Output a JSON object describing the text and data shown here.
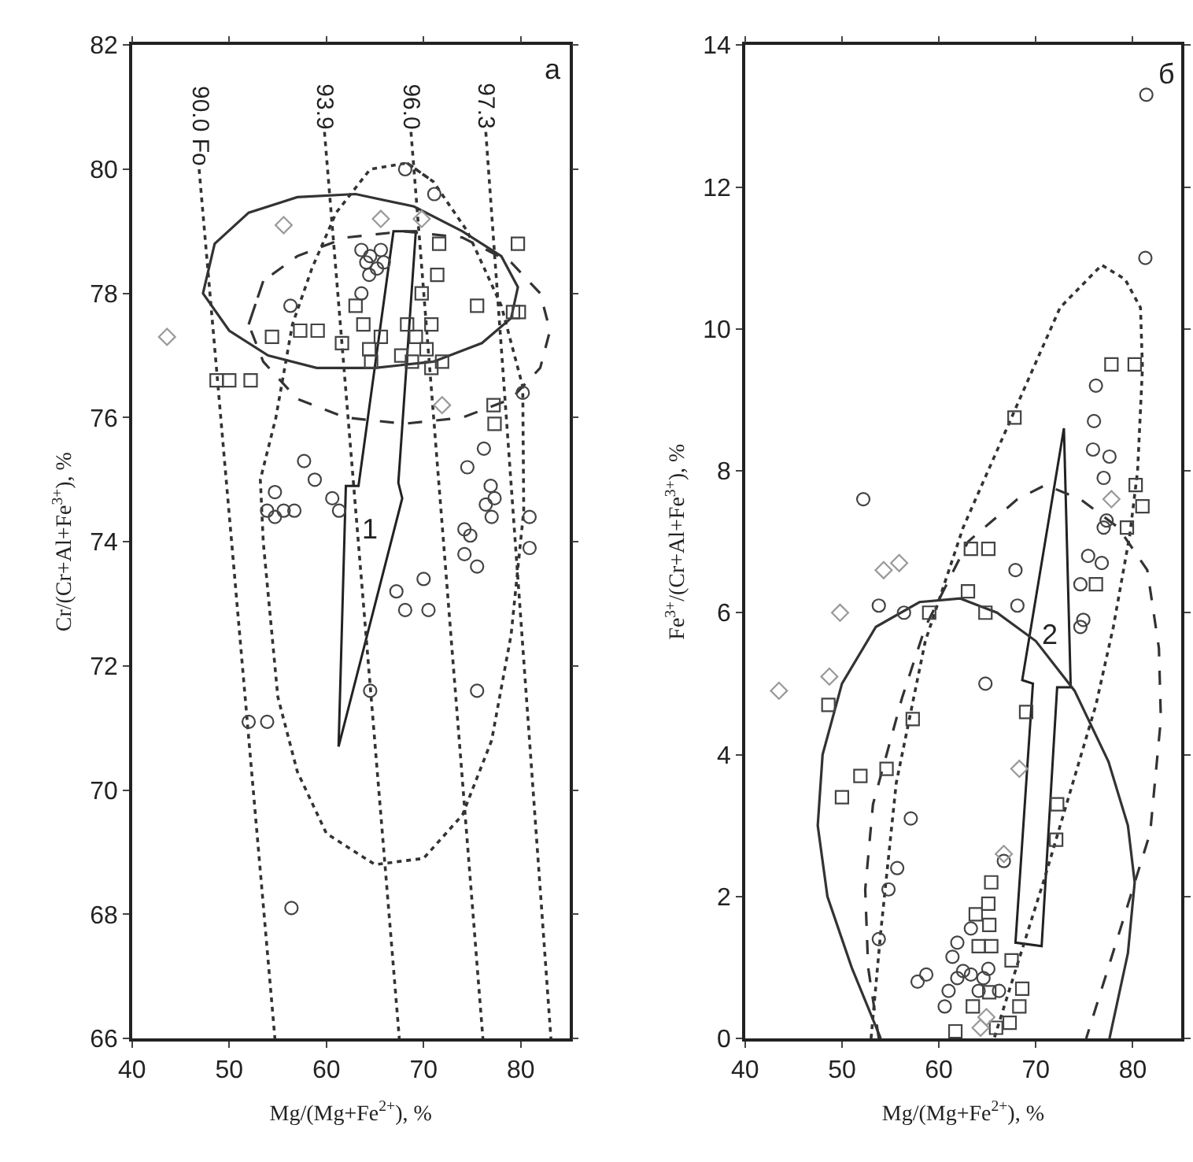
{
  "chart_data": [
    {
      "type": "scatter",
      "xlabel": "Mg/(Mg+Fe$^{2+}$), %",
      "ylabel": "Cr/(Cr+Al+Fe$^{3+}$), %",
      "xlim": [
        40,
        85
      ],
      "ylim": [
        66,
        82
      ],
      "xticks": [
        40,
        50,
        60,
        70,
        80
      ],
      "yticks": [
        66,
        68,
        70,
        72,
        74,
        76,
        78,
        80,
        82
      ],
      "grid": false,
      "series": [
        {
          "type": "line",
          "color": "#333333",
          "line_style": "dotted",
          "marker": "none",
          "x": [
            46.9,
            54.7
          ],
          "values": [
            80.0,
            66
          ]
        },
        {
          "type": "line",
          "color": "#333333",
          "line_style": "dotted",
          "marker": "none",
          "x": [
            59.8,
            67.5
          ],
          "values": [
            80.6,
            66
          ]
        },
        {
          "type": "line",
          "color": "#333333",
          "line_style": "dotted",
          "marker": "none",
          "x": [
            68.7,
            76.1
          ],
          "values": [
            80.6,
            66
          ]
        },
        {
          "type": "line",
          "color": "#333333",
          "line_style": "dotted",
          "marker": "none",
          "x": [
            76.4,
            83.1
          ],
          "values": [
            80.6,
            66
          ]
        },
        {
          "type": "line",
          "color": "#333333",
          "line_style": "solid",
          "marker": "none",
          "x": [
            47.3,
            48.5,
            52,
            57,
            63,
            69,
            74,
            78,
            79.7,
            79,
            76,
            71,
            65,
            59,
            54,
            50,
            47.3,
            48.5
          ],
          "values": [
            78.0,
            78.8,
            79.3,
            79.55,
            79.6,
            79.4,
            79.0,
            78.6,
            78.1,
            77.6,
            77.2,
            76.9,
            76.8,
            76.8,
            77.0,
            77.4,
            78.0,
            78.8
          ]
        },
        {
          "type": "line",
          "color": "#333333",
          "line_style": "dotted",
          "marker": "none",
          "x": [
            68.3,
            71,
            74.5,
            78,
            80.2,
            80.3,
            79,
            77,
            74,
            70,
            65,
            60,
            57,
            55,
            53.5,
            53.2,
            54.8,
            56.5,
            58.5,
            61,
            64.5,
            68.3,
            71
          ],
          "values": [
            80.1,
            79.8,
            79.0,
            77.8,
            76.5,
            74.5,
            72.5,
            70.8,
            69.6,
            68.9,
            68.8,
            69.3,
            70.3,
            71.5,
            74.0,
            75.0,
            76.0,
            77.5,
            78.4,
            79.3,
            80.0,
            80.1,
            79.8
          ]
        },
        {
          "type": "line",
          "color": "#333333",
          "line_style": "dashed",
          "marker": "none",
          "x": [
            52,
            53.5,
            57,
            62,
            68,
            74,
            79,
            82,
            83,
            82,
            79,
            74,
            68,
            62,
            57,
            53.5,
            52,
            53.5
          ],
          "values": [
            77.5,
            78.2,
            78.6,
            78.9,
            79.0,
            78.9,
            78.5,
            78.0,
            77.4,
            76.8,
            76.3,
            76.0,
            75.9,
            76.0,
            76.3,
            76.9,
            77.5,
            78.2
          ]
        },
        {
          "color": "#444444",
          "marker": "circle",
          "x": [
            68.1,
            71.1,
            63.6,
            64.5,
            65.6,
            64.1,
            65.2,
            64.4,
            65.9,
            56.3,
            63.6,
            80.2,
            76.2,
            74.5,
            76.9,
            77.3,
            76.4,
            77.0,
            80.9,
            80.9,
            74.2,
            74.8,
            57.7,
            58.8,
            54.7,
            53.9,
            55.6,
            54.7,
            56.7,
            60.6,
            61.3,
            74.2,
            75.5,
            67.2,
            68.1,
            70.0,
            70.5,
            64.5,
            75.5,
            52.0,
            53.9,
            56.4
          ],
          "values": [
            80.0,
            79.6,
            78.7,
            78.6,
            78.7,
            78.5,
            78.4,
            78.3,
            78.5,
            77.8,
            78.0,
            76.4,
            75.5,
            75.2,
            74.9,
            74.7,
            74.6,
            74.4,
            74.4,
            73.9,
            74.2,
            74.1,
            75.3,
            75.0,
            74.8,
            74.5,
            74.5,
            74.4,
            74.5,
            74.7,
            74.5,
            73.8,
            73.6,
            73.2,
            72.9,
            73.4,
            72.9,
            71.6,
            71.6,
            71.1,
            71.1,
            68.1
          ]
        },
        {
          "color": "#444444",
          "marker": "square",
          "x": [
            48.7,
            50.0,
            52.2,
            54.4,
            57.3,
            59.1,
            61.6,
            63.0,
            63.8,
            64.4,
            64.6,
            65.6,
            68.3,
            69.8,
            69.2,
            70.3,
            70.8,
            71.6,
            71.4,
            71.9,
            70.8,
            68.8,
            67.7,
            75.5,
            79.2,
            79.8,
            79.7,
            77.2,
            77.3
          ],
          "values": [
            76.6,
            76.6,
            76.6,
            77.3,
            77.4,
            77.4,
            77.2,
            77.8,
            77.5,
            77.1,
            76.9,
            77.3,
            77.5,
            78.0,
            77.3,
            77.1,
            77.5,
            78.8,
            78.3,
            76.9,
            76.8,
            76.9,
            77.0,
            77.8,
            77.7,
            77.7,
            78.8,
            76.2,
            75.9
          ]
        },
        {
          "color": "#999999",
          "marker": "diamond",
          "x": [
            55.6,
            43.6,
            65.6,
            69.8,
            71.9
          ],
          "values": [
            79.1,
            77.3,
            79.2,
            79.2,
            76.2
          ]
        }
      ],
      "annotations": [
        {
          "text": "90.0 Fo",
          "x": 46.9,
          "y": 80.0
        },
        {
          "text": "93.9",
          "x": 59.8,
          "y": 80.6
        },
        {
          "text": "96.0",
          "x": 68.7,
          "y": 80.6
        },
        {
          "text": "97.3",
          "x": 76.4,
          "y": 80.6
        },
        "a",
        "1"
      ]
    },
    {
      "type": "scatter",
      "xlabel": "Mg/(Mg+Fe$^{2+}$), %",
      "ylabel": "Fe$^{3+}$/(Cr+Al+Fe$^{3+}$), %",
      "xlim": [
        40,
        85
      ],
      "ylim": [
        0,
        14
      ],
      "xticks": [
        40,
        50,
        60,
        70,
        80
      ],
      "yticks": [
        0,
        2,
        4,
        6,
        8,
        10,
        12,
        14
      ],
      "grid": false,
      "series": [
        {
          "type": "line",
          "color": "#333333",
          "line_style": "solid",
          "marker": "none",
          "x": [
            54.0,
            51,
            48.5,
            47.5,
            48,
            50,
            53.5,
            58,
            62.2,
            66,
            70,
            74,
            77.5,
            79.5,
            80.2,
            79.5,
            77.6
          ],
          "values": [
            0,
            1.0,
            2.0,
            3.0,
            4.0,
            5.0,
            5.8,
            6.15,
            6.2,
            6.0,
            5.6,
            4.9,
            3.9,
            3.0,
            2.2,
            1.2,
            0
          ]
        },
        {
          "type": "line",
          "color": "#333333",
          "line_style": "dotted",
          "marker": "none",
          "x": [
            53.0,
            54.0,
            55.6,
            58.6,
            62.5,
            68.3,
            72.5,
            76.8,
            79.2,
            80.8,
            81.0,
            80.5,
            79.7,
            78,
            76.2,
            71.0,
            68,
            65.7
          ],
          "values": [
            0,
            1.5,
            3.6,
            5.6,
            7.2,
            9.0,
            10.3,
            10.9,
            10.7,
            10.3,
            9.45,
            8.0,
            7.1,
            5.8,
            4.7,
            2.3,
            1.0,
            0
          ]
        },
        {
          "type": "line",
          "color": "#333333",
          "line_style": "dashed",
          "marker": "none",
          "x": [
            53.8,
            52.7,
            52.4,
            53.2,
            56.2,
            58.6,
            63.0,
            68.1,
            71.0,
            74.6,
            78.5,
            81.5,
            82.7,
            82.9,
            81.8,
            78.4,
            75.2
          ],
          "values": [
            0,
            1.0,
            2.1,
            3.3,
            4.8,
            5.8,
            7.0,
            7.6,
            7.8,
            7.6,
            7.2,
            6.6,
            5.5,
            4.5,
            2.9,
            1.4,
            0
          ]
        },
        {
          "color": "#444444",
          "marker": "circle",
          "x": [
            81.4,
            81.3,
            52.2,
            76.2,
            76.0,
            75.9,
            77.6,
            77.0,
            77.3,
            77.0,
            75.4,
            76.8,
            74.6,
            74.9,
            74.6,
            67.9,
            68.1,
            53.8,
            56.4,
            64.8,
            57.1,
            55.7,
            54.8,
            53.8,
            57.8,
            58.7,
            66.7,
            61.9,
            61.4,
            63.3,
            62.5,
            61.0,
            60.6,
            61.9,
            63.3,
            64.6,
            64.1,
            66.2,
            65.1
          ],
          "values": [
            13.3,
            11.0,
            7.6,
            9.2,
            8.7,
            8.3,
            8.2,
            7.9,
            7.3,
            7.2,
            6.8,
            6.7,
            6.4,
            5.9,
            5.8,
            6.6,
            6.1,
            6.1,
            6.0,
            5.0,
            3.1,
            2.4,
            2.1,
            1.4,
            0.8,
            0.9,
            2.5,
            1.35,
            1.15,
            1.55,
            0.95,
            0.67,
            0.45,
            0.85,
            0.9,
            0.85,
            0.67,
            0.67,
            0.98
          ]
        },
        {
          "color": "#444444",
          "marker": "square",
          "x": [
            63.3,
            65.1,
            63.0,
            64.8,
            59.0,
            76.2,
            48.6,
            50.0,
            51.9,
            54.6,
            57.3,
            69.0,
            72.2,
            72.1,
            65.4,
            65.1,
            63.8,
            65.2,
            64.1,
            65.4,
            67.5,
            68.6,
            68.3,
            63.5,
            65.2,
            67.3,
            65.9,
            61.7,
            77.8,
            80.2,
            67.8,
            80.3,
            81.0,
            79.4
          ],
          "values": [
            6.9,
            6.9,
            6.3,
            6.0,
            6.0,
            6.4,
            4.7,
            3.4,
            3.7,
            3.8,
            4.5,
            4.6,
            3.3,
            2.8,
            2.2,
            1.9,
            1.75,
            1.6,
            1.3,
            1.3,
            1.1,
            0.7,
            0.45,
            0.45,
            0.65,
            0.22,
            0.15,
            0.1,
            9.5,
            9.5,
            8.75,
            7.8,
            7.5,
            7.2
          ]
        },
        {
          "color": "#999999",
          "marker": "diamond",
          "x": [
            49.8,
            48.7,
            54.3,
            55.9,
            43.5,
            68.3,
            66.7,
            64.3,
            64.9,
            77.8
          ],
          "values": [
            6.0,
            5.1,
            6.6,
            6.7,
            4.9,
            3.8,
            2.6,
            0.15,
            0.3,
            7.6
          ]
        }
      ],
      "annotations": [
        "б",
        "2"
      ]
    }
  ]
}
